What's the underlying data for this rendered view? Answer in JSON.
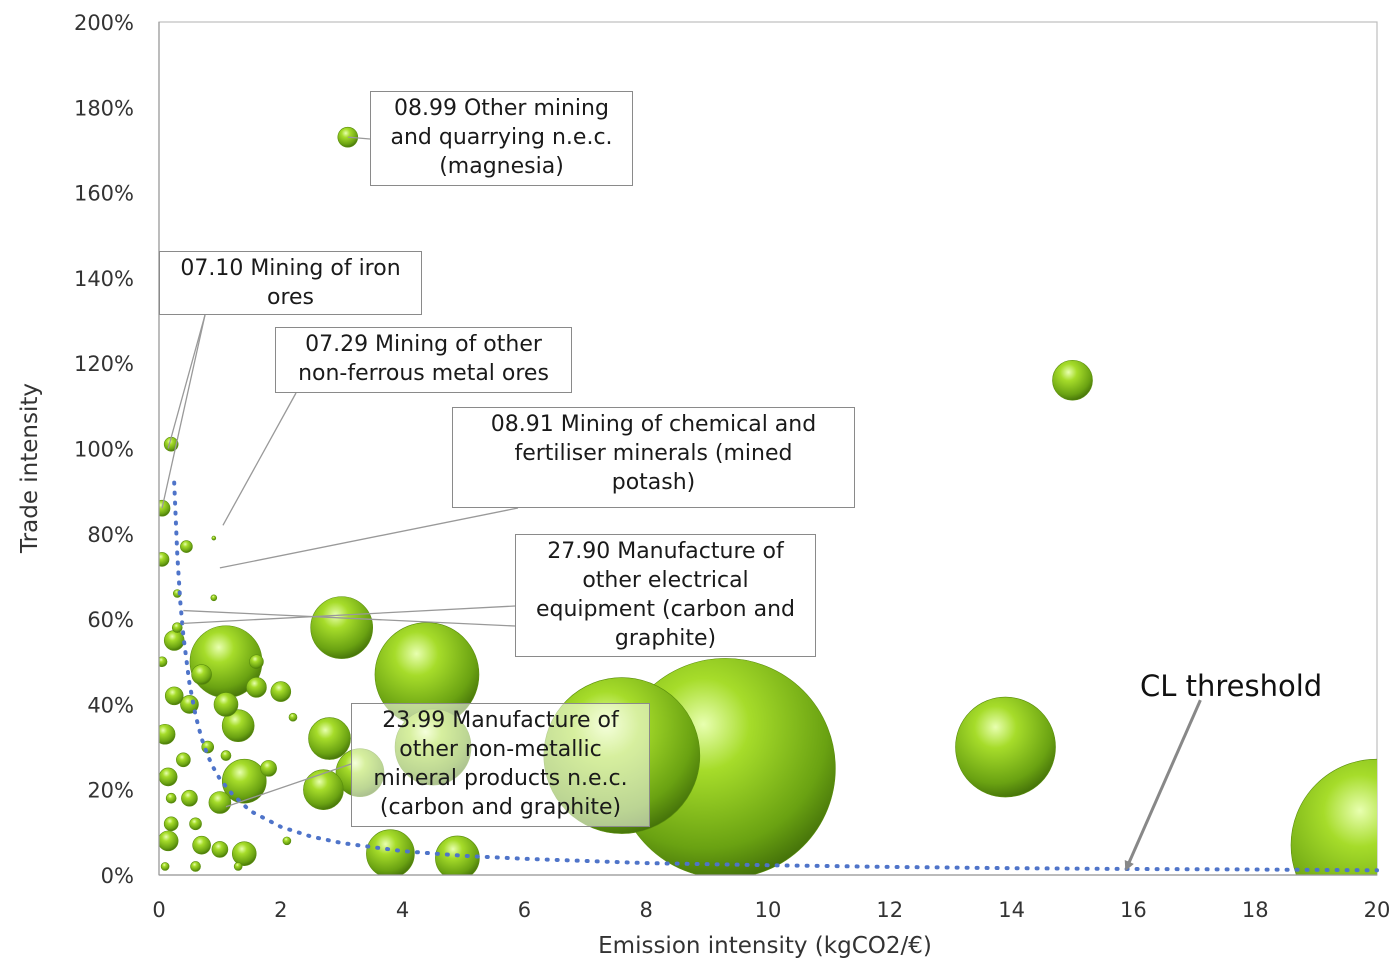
{
  "chart_data": {
    "type": "scatter",
    "subtype": "bubble",
    "title": "",
    "xlabel": "Emission intensity (kgCO2/€)",
    "ylabel": "Trade intensity",
    "xlim": [
      0,
      20
    ],
    "ylim": [
      0,
      2
    ],
    "x_ticks": [
      "0",
      "2",
      "4",
      "6",
      "8",
      "10",
      "12",
      "14",
      "16",
      "18",
      "20"
    ],
    "y_ticks": [
      "0%",
      "20%",
      "40%",
      "60%",
      "80%",
      "100%",
      "120%",
      "140%",
      "160%",
      "180%",
      "200%"
    ],
    "grid": false,
    "legend": "none",
    "bubble_color": "#7cb518",
    "threshold_color": "#4f74c9",
    "bubbles": [
      {
        "x": 9.3,
        "y": 0.25,
        "r": 110
      },
      {
        "x": 7.6,
        "y": 0.28,
        "r": 78
      },
      {
        "x": 20.0,
        "y": 0.07,
        "r": 86
      },
      {
        "x": 4.4,
        "y": 0.47,
        "r": 52
      },
      {
        "x": 13.9,
        "y": 0.3,
        "r": 50
      },
      {
        "x": 1.1,
        "y": 0.5,
        "r": 36
      },
      {
        "x": 3.0,
        "y": 0.58,
        "r": 31
      },
      {
        "x": 4.5,
        "y": 0.3,
        "r": 38
      },
      {
        "x": 15.0,
        "y": 1.16,
        "r": 20
      },
      {
        "x": 3.8,
        "y": 0.05,
        "r": 24
      },
      {
        "x": 4.9,
        "y": 0.04,
        "r": 22
      },
      {
        "x": 2.8,
        "y": 0.32,
        "r": 21
      },
      {
        "x": 2.7,
        "y": 0.2,
        "r": 20
      },
      {
        "x": 3.3,
        "y": 0.24,
        "r": 24
      },
      {
        "x": 1.4,
        "y": 0.22,
        "r": 22
      },
      {
        "x": 3.1,
        "y": 1.73,
        "r": 10
      },
      {
        "x": 1.3,
        "y": 0.35,
        "r": 16
      },
      {
        "x": 1.1,
        "y": 0.4,
        "r": 12
      },
      {
        "x": 0.7,
        "y": 0.47,
        "r": 10
      },
      {
        "x": 0.5,
        "y": 0.4,
        "r": 9
      },
      {
        "x": 0.25,
        "y": 0.55,
        "r": 10
      },
      {
        "x": 0.25,
        "y": 0.42,
        "r": 9
      },
      {
        "x": 0.1,
        "y": 0.33,
        "r": 10
      },
      {
        "x": 0.15,
        "y": 0.23,
        "r": 9
      },
      {
        "x": 0.15,
        "y": 0.08,
        "r": 10
      },
      {
        "x": 0.7,
        "y": 0.07,
        "r": 9
      },
      {
        "x": 1.0,
        "y": 0.17,
        "r": 11
      },
      {
        "x": 1.4,
        "y": 0.05,
        "r": 12
      },
      {
        "x": 1.0,
        "y": 0.06,
        "r": 8
      },
      {
        "x": 1.6,
        "y": 0.44,
        "r": 10
      },
      {
        "x": 2.0,
        "y": 0.43,
        "r": 10
      },
      {
        "x": 1.8,
        "y": 0.25,
        "r": 8
      },
      {
        "x": 0.5,
        "y": 0.18,
        "r": 8
      },
      {
        "x": 0.4,
        "y": 0.27,
        "r": 7
      },
      {
        "x": 0.2,
        "y": 0.12,
        "r": 7
      },
      {
        "x": 0.05,
        "y": 0.86,
        "r": 8
      },
      {
        "x": 0.05,
        "y": 0.74,
        "r": 7
      },
      {
        "x": 0.2,
        "y": 1.01,
        "r": 7
      },
      {
        "x": 0.45,
        "y": 0.77,
        "r": 6
      },
      {
        "x": 0.3,
        "y": 0.58,
        "r": 5
      },
      {
        "x": 1.6,
        "y": 0.5,
        "r": 7
      },
      {
        "x": 0.6,
        "y": 0.12,
        "r": 6
      },
      {
        "x": 0.8,
        "y": 0.3,
        "r": 6
      },
      {
        "x": 2.1,
        "y": 0.08,
        "r": 4
      },
      {
        "x": 1.1,
        "y": 0.28,
        "r": 5
      },
      {
        "x": 0.3,
        "y": 0.66,
        "r": 4
      },
      {
        "x": 0.2,
        "y": 0.18,
        "r": 5
      },
      {
        "x": 0.05,
        "y": 0.5,
        "r": 5
      },
      {
        "x": 0.1,
        "y": 0.02,
        "r": 4
      },
      {
        "x": 0.6,
        "y": 0.02,
        "r": 5
      },
      {
        "x": 1.3,
        "y": 0.02,
        "r": 4
      },
      {
        "x": 0.9,
        "y": 0.65,
        "r": 3
      },
      {
        "x": 0.9,
        "y": 0.79,
        "r": 2
      },
      {
        "x": 2.2,
        "y": 0.37,
        "r": 4
      }
    ],
    "threshold_curve": {
      "name": "CL threshold",
      "points": [
        [
          0.25,
          0.92
        ],
        [
          0.3,
          0.75
        ],
        [
          0.35,
          0.64
        ],
        [
          0.4,
          0.56
        ],
        [
          0.5,
          0.45
        ],
        [
          0.6,
          0.375
        ],
        [
          0.7,
          0.32
        ],
        [
          0.8,
          0.28
        ],
        [
          0.9,
          0.25
        ],
        [
          1.0,
          0.225
        ],
        [
          1.2,
          0.19
        ],
        [
          1.5,
          0.15
        ],
        [
          2.0,
          0.113
        ],
        [
          2.5,
          0.09
        ],
        [
          3.0,
          0.075
        ],
        [
          4.0,
          0.056
        ],
        [
          5.0,
          0.045
        ],
        [
          6.0,
          0.038
        ],
        [
          8.0,
          0.028
        ],
        [
          10.0,
          0.023
        ],
        [
          12.0,
          0.019
        ],
        [
          14.0,
          0.016
        ],
        [
          16.0,
          0.014
        ],
        [
          18.0,
          0.013
        ],
        [
          20.0,
          0.011
        ]
      ],
      "label": "CL threshold",
      "arrow_from": [
        17.1,
        0.41
      ],
      "arrow_to": [
        15.9,
        0.02
      ]
    },
    "annotations": [
      {
        "lines": [
          "08.99 Other mining",
          "and quarrying n.e.c.",
          "(magnesia)"
        ],
        "target": [
          3.1,
          1.73
        ]
      },
      {
        "lines": [
          "07.10 Mining of iron",
          "ores"
        ],
        "target": [
          0.15,
          1.0
        ]
      },
      {
        "lines": [
          "07.29 Mining of other",
          "non-ferrous metal ores"
        ],
        "target": [
          1.05,
          0.82
        ]
      },
      {
        "lines": [
          "08.91 Mining of chemical and",
          "fertiliser minerals (mined",
          "potash)"
        ],
        "target": [
          1.0,
          0.72
        ]
      },
      {
        "lines": [
          "27.90 Manufacture of",
          "other electrical",
          "equipment (carbon and",
          "graphite)"
        ],
        "target": [
          0.4,
          0.59
        ]
      },
      {
        "lines": [
          "23.99 Manufacture of",
          "other non-metallic",
          "mineral products n.e.c.",
          "(carbon and graphite)"
        ],
        "target": [
          1.1,
          0.16
        ]
      }
    ]
  }
}
